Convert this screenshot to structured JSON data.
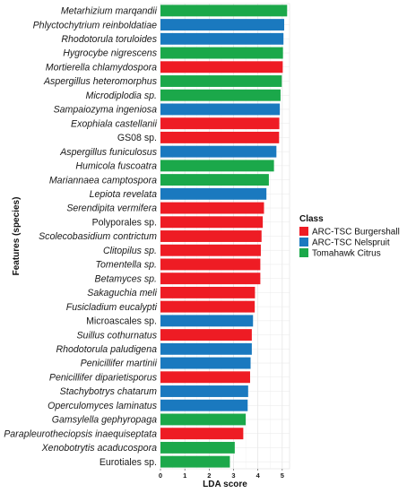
{
  "chart_data": {
    "type": "bar",
    "orientation": "horizontal",
    "xlabel": "LDA score",
    "ylabel": "Features (species)",
    "xlim": [
      0,
      5.3
    ],
    "xticks": [
      0,
      1,
      2,
      3,
      4,
      5
    ],
    "grid": true,
    "legend_placement": "right",
    "legend": {
      "title": "Class",
      "entries": [
        {
          "name": "ARC-TSC Burgershall",
          "color": "#ee1c24"
        },
        {
          "name": "ARC-TSC Nelspruit",
          "color": "#1a79bf"
        },
        {
          "name": "Tomahawk Citrus",
          "color": "#1ba84a"
        }
      ]
    },
    "bars": [
      {
        "label": "Metarhizium marqandii",
        "italic": true,
        "value": 5.2,
        "class": "Tomahawk Citrus"
      },
      {
        "label": "Phlyctochytrium reinboldatiae",
        "italic": true,
        "value": 5.08,
        "class": "ARC-TSC Nelspruit"
      },
      {
        "label": "Rhodotorula toruloides",
        "italic": true,
        "value": 5.05,
        "class": "ARC-TSC Nelspruit"
      },
      {
        "label": "Hygrocybe nigrescens",
        "italic": true,
        "value": 5.03,
        "class": "Tomahawk Citrus"
      },
      {
        "label": "Mortierella chlamydospora",
        "italic": true,
        "value": 5.02,
        "class": "ARC-TSC Burgershall"
      },
      {
        "label": "Aspergillus heteromorphus",
        "italic": true,
        "value": 4.98,
        "class": "Tomahawk Citrus"
      },
      {
        "label": "Microdiplodia sp.",
        "italic": true,
        "value": 4.93,
        "class": "Tomahawk Citrus"
      },
      {
        "label": "Sampaiozyma ingeniosa",
        "italic": true,
        "value": 4.9,
        "class": "ARC-TSC Nelspruit"
      },
      {
        "label": "Exophiala castellanii",
        "italic": true,
        "value": 4.88,
        "class": "ARC-TSC Burgershall"
      },
      {
        "label": "GS08 sp.",
        "italic": false,
        "value": 4.87,
        "class": "ARC-TSC Burgershall"
      },
      {
        "label": "Aspergillus funiculosus",
        "italic": true,
        "value": 4.76,
        "class": "ARC-TSC Nelspruit"
      },
      {
        "label": "Humicola fuscoatra",
        "italic": true,
        "value": 4.66,
        "class": "Tomahawk Citrus"
      },
      {
        "label": "Mariannaea camptospora",
        "italic": true,
        "value": 4.45,
        "class": "Tomahawk Citrus"
      },
      {
        "label": "Lepiota revelata",
        "italic": true,
        "value": 4.35,
        "class": "ARC-TSC Nelspruit"
      },
      {
        "label": "Serendipita vermifera",
        "italic": true,
        "value": 4.25,
        "class": "ARC-TSC Burgershall"
      },
      {
        "label": "Polyporales sp.",
        "italic": false,
        "value": 4.2,
        "class": "ARC-TSC Burgershall"
      },
      {
        "label": "Scolecobasidium contrictum",
        "italic": true,
        "value": 4.15,
        "class": "ARC-TSC Burgershall"
      },
      {
        "label": "Clitopilus sp.",
        "italic": true,
        "value": 4.12,
        "class": "ARC-TSC Burgershall"
      },
      {
        "label": "Tomentella sp.",
        "italic": true,
        "value": 4.1,
        "class": "ARC-TSC Burgershall"
      },
      {
        "label": "Betamyces sp.",
        "italic": true,
        "value": 4.1,
        "class": "ARC-TSC Burgershall"
      },
      {
        "label": "Sakaguchia meli",
        "italic": true,
        "value": 3.88,
        "class": "ARC-TSC Burgershall"
      },
      {
        "label": "Fusicladium eucalypti",
        "italic": true,
        "value": 3.87,
        "class": "ARC-TSC Burgershall"
      },
      {
        "label": "Microascales sp.",
        "italic": false,
        "value": 3.8,
        "class": "ARC-TSC Nelspruit"
      },
      {
        "label": "Suillus cothurnatus",
        "italic": true,
        "value": 3.75,
        "class": "ARC-TSC Burgershall"
      },
      {
        "label": "Rhodotorula paludigena",
        "italic": true,
        "value": 3.75,
        "class": "ARC-TSC Nelspruit"
      },
      {
        "label": "Penicillifer martinii",
        "italic": true,
        "value": 3.7,
        "class": "ARC-TSC Nelspruit"
      },
      {
        "label": "Penicillifer diparietisporus",
        "italic": true,
        "value": 3.68,
        "class": "ARC-TSC Burgershall"
      },
      {
        "label": "Stachybotrys chatarum",
        "italic": true,
        "value": 3.6,
        "class": "ARC-TSC Nelspruit"
      },
      {
        "label": "Operculomyces laminatus",
        "italic": true,
        "value": 3.58,
        "class": "ARC-TSC Nelspruit"
      },
      {
        "label": "Gamsylella gephyropaga",
        "italic": true,
        "value": 3.5,
        "class": "Tomahawk Citrus"
      },
      {
        "label": "Parapleurotheciopsis inaequiseptata",
        "italic": true,
        "value": 3.4,
        "class": "ARC-TSC Burgershall"
      },
      {
        "label": "Xenobotrytis acaducospora",
        "italic": true,
        "value": 3.05,
        "class": "Tomahawk Citrus"
      },
      {
        "label": "Eurotiales sp.",
        "italic": false,
        "value": 2.85,
        "class": "Tomahawk Citrus"
      }
    ]
  }
}
